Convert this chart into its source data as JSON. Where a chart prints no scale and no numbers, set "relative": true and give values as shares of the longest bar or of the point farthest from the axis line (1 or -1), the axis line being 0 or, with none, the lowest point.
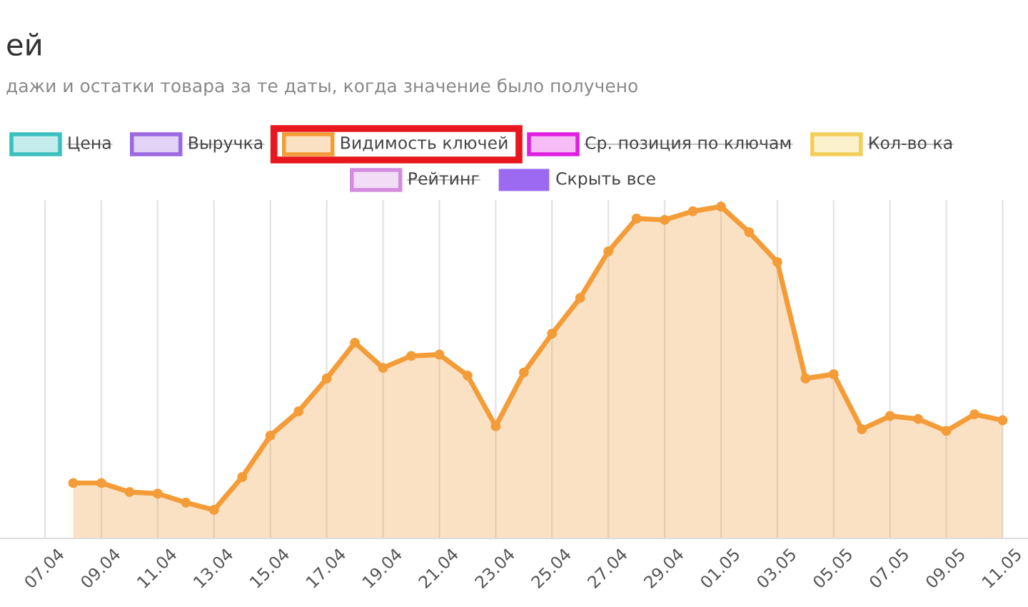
{
  "chart_data": {
    "type": "area",
    "title": "ей",
    "subtitle": "дажи и остатки товара за те даты, когда значение было получено",
    "relative": true,
    "grid": "x",
    "marker": "circle",
    "legend": "top",
    "categories": [
      "07.04",
      null,
      "09.04",
      null,
      "11.04",
      null,
      "13.04",
      null,
      "15.04",
      null,
      "17.04",
      null,
      "19.04",
      null,
      "21.04",
      null,
      "23.04",
      null,
      "25.04",
      null,
      "27.04",
      null,
      "29.04",
      null,
      "01.05",
      null,
      "03.05",
      null,
      "05.05",
      null,
      "07.05",
      null,
      "09.05",
      null,
      "11.05"
    ],
    "series": [
      {
        "name": "Цена",
        "color": "#3bbfbf",
        "values": [
          null,
          null,
          null,
          null,
          null,
          null,
          null,
          null,
          null,
          null,
          null,
          null,
          null,
          null,
          null,
          null,
          null,
          null,
          null,
          null,
          null,
          null,
          null,
          null,
          null,
          null,
          null,
          null,
          null,
          null,
          null,
          null,
          null,
          null,
          null
        ]
      },
      {
        "name": "Выручка",
        "color": "#9b6ae0",
        "values": [
          null,
          null,
          null,
          null,
          null,
          null,
          null,
          null,
          null,
          null,
          null,
          null,
          null,
          null,
          null,
          null,
          null,
          null,
          null,
          null,
          null,
          null,
          null,
          null,
          null,
          null,
          null,
          null,
          null,
          null,
          null,
          null,
          null,
          null,
          null
        ]
      },
      {
        "name": "Видимость ключей",
        "color": "#f39c38",
        "values": [
          null,
          0.167,
          0.167,
          0.14,
          0.135,
          0.108,
          0.086,
          0.185,
          0.31,
          0.383,
          0.482,
          0.59,
          0.514,
          0.55,
          0.554,
          0.491,
          0.338,
          0.5,
          0.617,
          0.725,
          0.865,
          0.964,
          0.96,
          0.986,
          1,
          0.923,
          0.833,
          0.482,
          0.495,
          0.329,
          0.369,
          0.36,
          0.324,
          0.374,
          0.356
        ]
      },
      {
        "name": "Ср. позиция по ключам",
        "color": "#e020e0",
        "values": [
          null,
          null,
          null,
          null,
          null,
          null,
          null,
          null,
          null,
          null,
          null,
          null,
          null,
          null,
          null,
          null,
          null,
          null,
          null,
          null,
          null,
          null,
          null,
          null,
          null,
          null,
          null,
          null,
          null,
          null,
          null,
          null,
          null,
          null,
          null
        ]
      },
      {
        "name": "Кол-во ка",
        "color": "#f2cf5a",
        "values": [
          null,
          null,
          null,
          null,
          null,
          null,
          null,
          null,
          null,
          null,
          null,
          null,
          null,
          null,
          null,
          null,
          null,
          null,
          null,
          null,
          null,
          null,
          null,
          null,
          null,
          null,
          null,
          null,
          null,
          null,
          null,
          null,
          null,
          null,
          null
        ]
      },
      {
        "name": "Рейтинг",
        "color": "#d58ce0",
        "values": [
          null,
          null,
          null,
          null,
          null,
          null,
          null,
          null,
          null,
          null,
          null,
          null,
          null,
          null,
          null,
          null,
          null,
          null,
          null,
          null,
          null,
          null,
          null,
          null,
          null,
          null,
          null,
          null,
          null,
          null,
          null,
          null,
          null,
          null,
          null
        ]
      }
    ],
    "annotations": [
      "Скрыть все"
    ]
  }
}
